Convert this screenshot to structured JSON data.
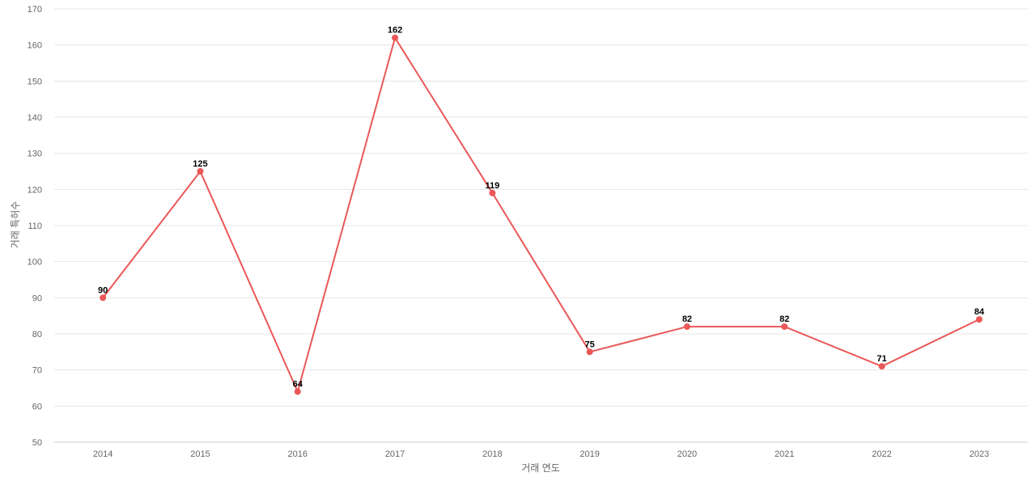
{
  "chart_data": {
    "type": "line",
    "xlabel": "거래 연도",
    "ylabel": "거래 특허수",
    "categories": [
      "2014",
      "2015",
      "2016",
      "2017",
      "2018",
      "2019",
      "2020",
      "2021",
      "2022",
      "2023"
    ],
    "series": [
      {
        "values": [
          90,
          125,
          64,
          162,
          119,
          75,
          82,
          82,
          71,
          84
        ],
        "color": "#eb5757"
      }
    ],
    "ylim": [
      50,
      170
    ],
    "yticks": [
      50,
      60,
      70,
      80,
      90,
      100,
      110,
      120,
      130,
      140,
      150,
      160,
      170
    ],
    "grid": true,
    "legend": "none",
    "data_labels": true
  }
}
